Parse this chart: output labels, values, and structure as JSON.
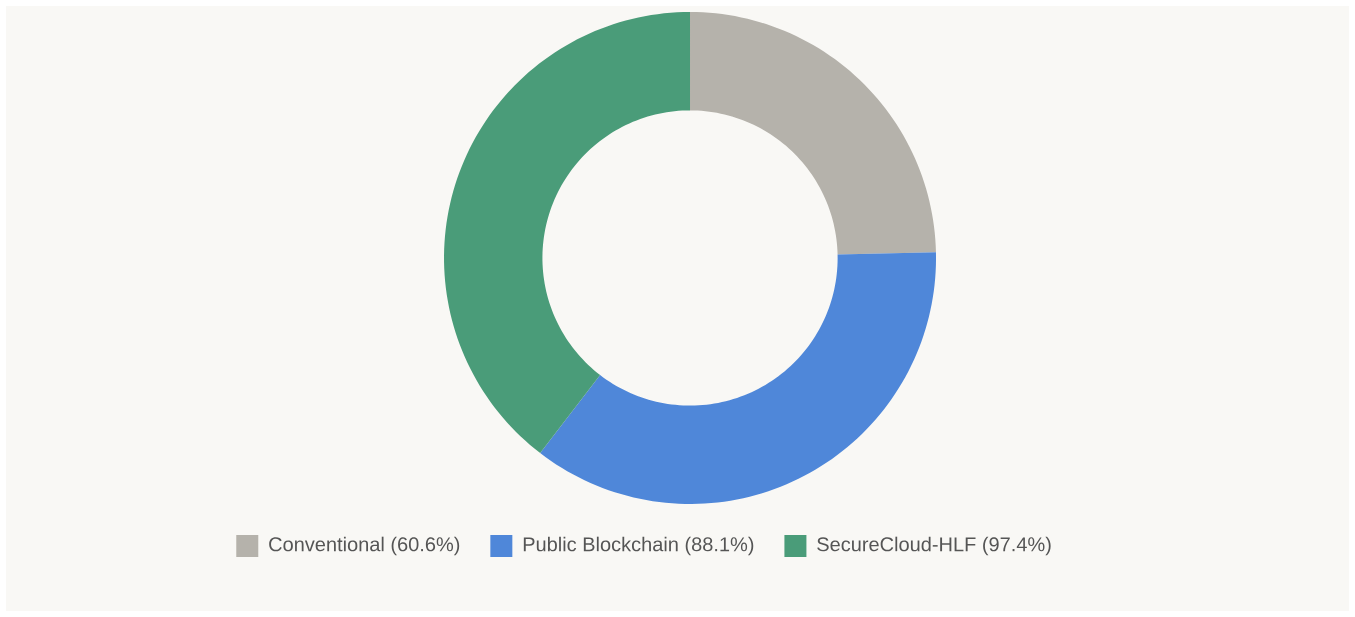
{
  "chart_data": {
    "type": "donut",
    "categories": [
      "Conventional (60.6%)",
      "Public Blockchain (88.1%)",
      "SecureCloud-HLF (97.4%)"
    ],
    "values": [
      60.6,
      88.1,
      97.4
    ],
    "colors": [
      "#b5b2ab",
      "#4f87d9",
      "#4a9c79"
    ],
    "legend": "bottom"
  }
}
